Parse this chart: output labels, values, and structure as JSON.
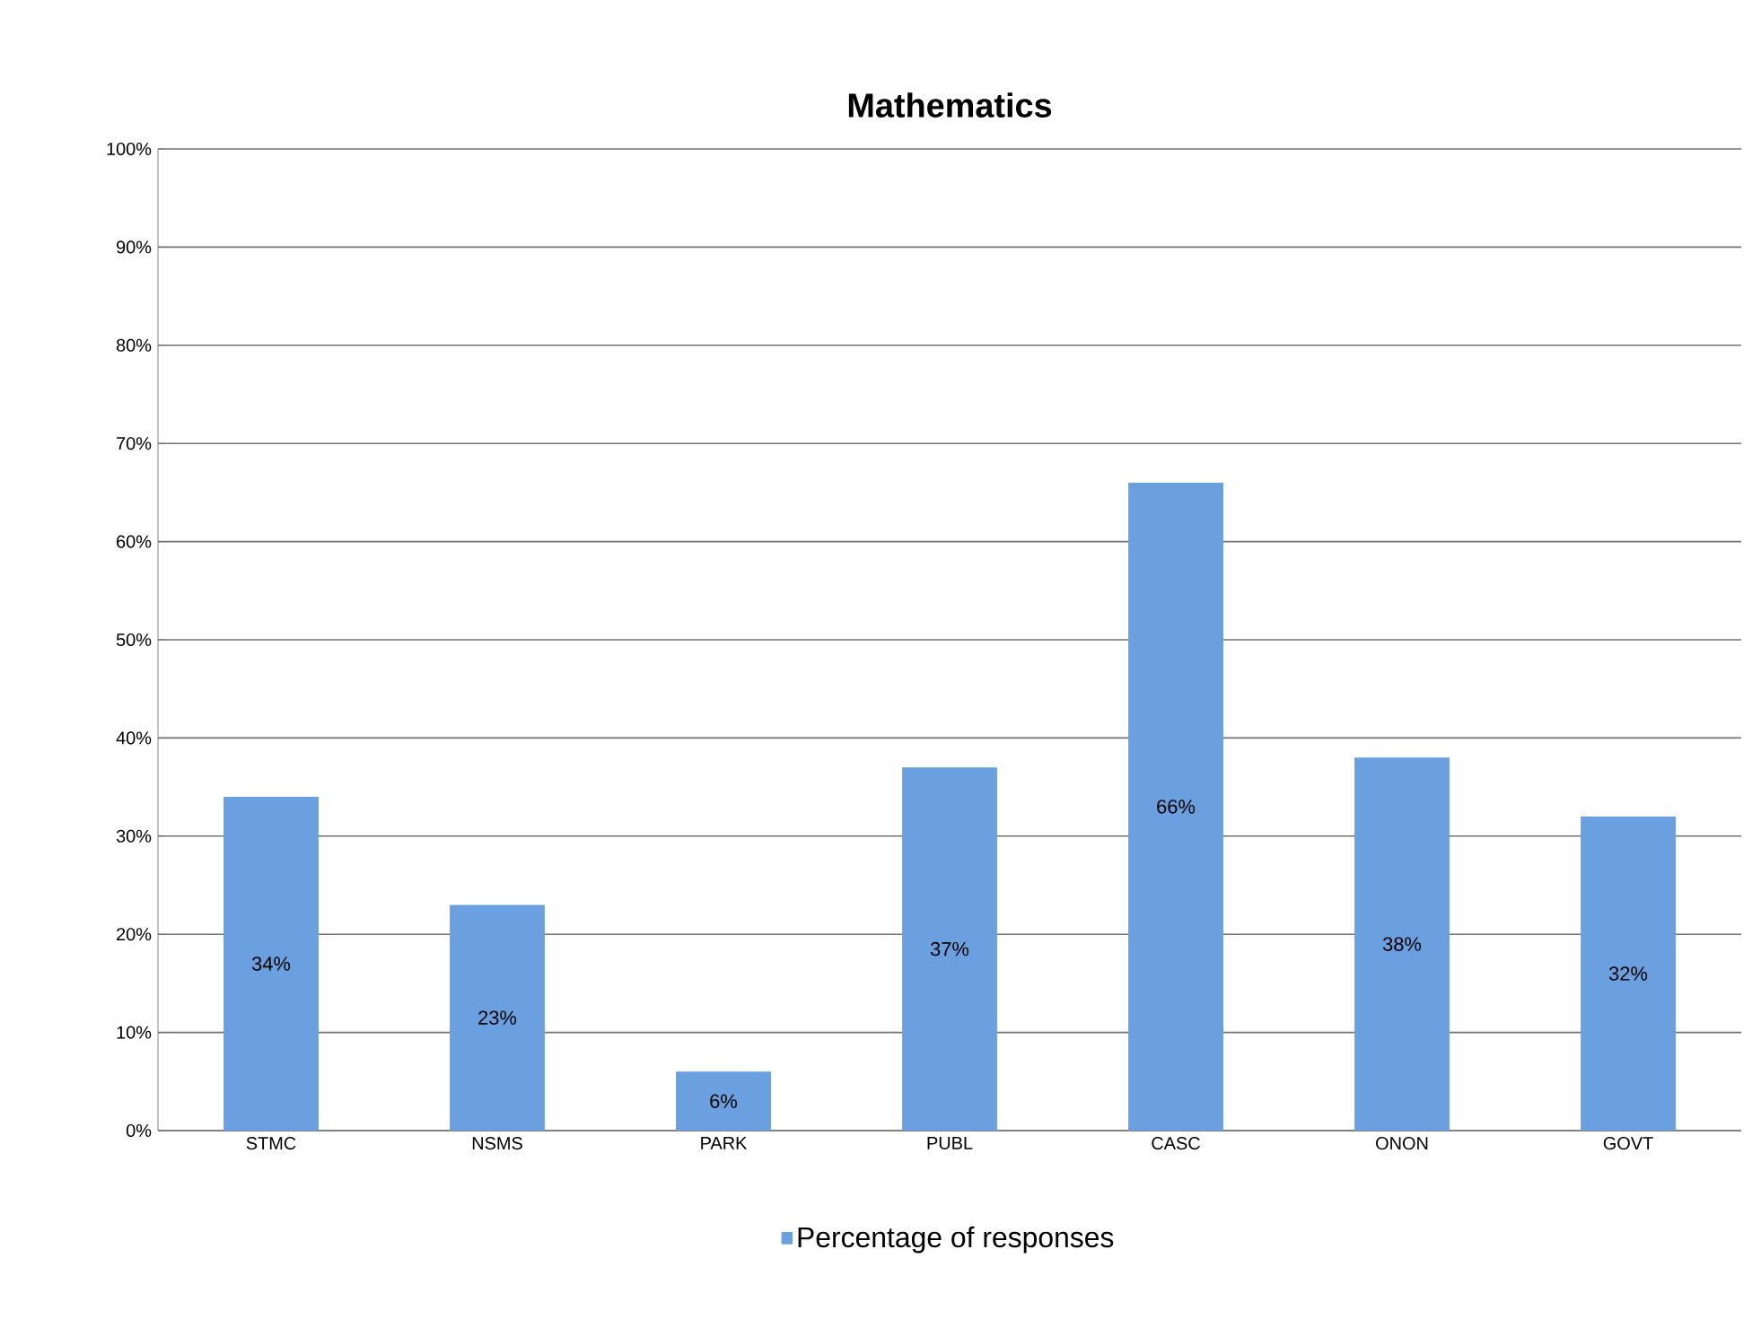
{
  "chart_data": {
    "type": "bar",
    "title": "Mathematics",
    "categories": [
      "STMC",
      "NSMS",
      "PARK",
      "PUBL",
      "CASC",
      "ONON",
      "GOVT"
    ],
    "series": [
      {
        "name": "Percentage of responses",
        "color": "#6a9fe0",
        "values": [
          34,
          23,
          6,
          37,
          66,
          38,
          32
        ],
        "value_labels": [
          "34%",
          "23%",
          "6%",
          "37%",
          "66%",
          "38%",
          "32%"
        ]
      }
    ],
    "ylim": [
      0,
      100
    ],
    "yticks": [
      {
        "value": 0,
        "label": "0%"
      },
      {
        "value": 10,
        "label": "10%"
      },
      {
        "value": 20,
        "label": "20%"
      },
      {
        "value": 30,
        "label": "30%"
      },
      {
        "value": 40,
        "label": "40%"
      },
      {
        "value": 50,
        "label": "50%"
      },
      {
        "value": 60,
        "label": "60%"
      },
      {
        "value": 70,
        "label": "70%"
      },
      {
        "value": 80,
        "label": "80%"
      },
      {
        "value": 90,
        "label": "90%"
      },
      {
        "value": 100,
        "label": "100%"
      }
    ],
    "grid": "y",
    "legend": "bottom"
  }
}
